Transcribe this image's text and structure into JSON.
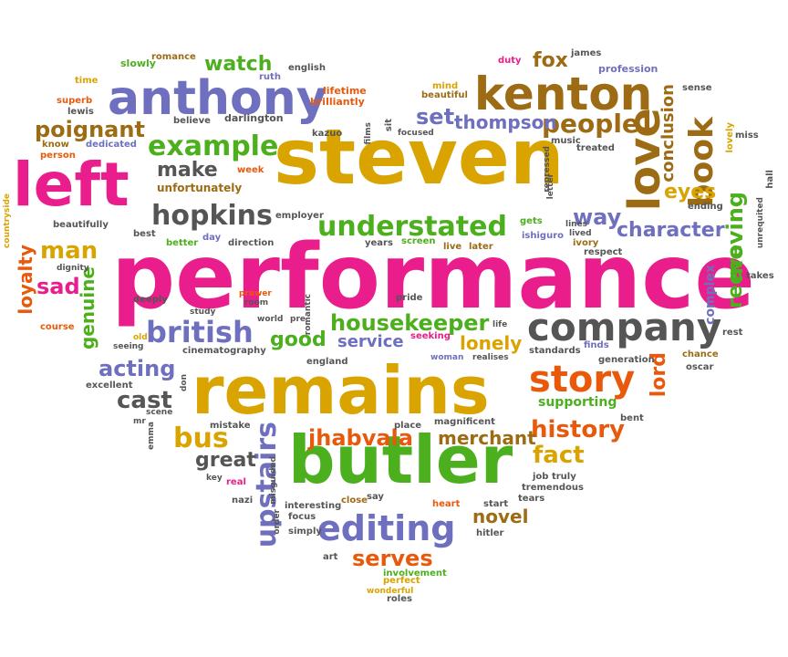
{
  "colors": {
    "pink": "#e91e8c",
    "orange": "#e8590c",
    "gold": "#d9a400",
    "green": "#4caf1d",
    "purple": "#6f6fbf",
    "brown": "#9c6b13",
    "gray": "#555555"
  },
  "words": [
    "performance",
    "steven",
    "remains",
    "butler",
    "left",
    "anthony",
    "kenton",
    "company",
    "love",
    "story",
    "editing",
    "british",
    "housekeeper",
    "upstairs",
    "hopkins",
    "understated",
    "book",
    "example",
    "people",
    "character",
    "moving",
    "history",
    "jhabvala",
    "merchant",
    "watch",
    "poignant",
    "set",
    "thompson",
    "make",
    "unfortunately",
    "man",
    "loyalty",
    "sad",
    "genuine",
    "good",
    "service",
    "lonely",
    "acting",
    "cast",
    "bus",
    "great",
    "fact",
    "serves",
    "novel",
    "eyes",
    "reeve",
    "conclusion",
    "lord",
    "supporting",
    "way",
    "complex",
    "fox",
    "slowly",
    "romance",
    "time",
    "superb",
    "lewis",
    "person",
    "know",
    "dedicated",
    "believe",
    "darlington",
    "beautiful",
    "brilliantly",
    "lifetime",
    "ruth",
    "english",
    "mind",
    "duty",
    "james",
    "profession",
    "sense",
    "lovely",
    "miss",
    "hall",
    "takes",
    "rest",
    "chance",
    "oscar",
    "finds",
    "generation",
    "standards",
    "respect",
    "ivory",
    "later",
    "live",
    "ishiguro",
    "gets",
    "screen",
    "years",
    "direction",
    "day",
    "better",
    "best",
    "beautifully",
    "countryside",
    "dignity",
    "course",
    "deeply",
    "study",
    "prawer",
    "room",
    "pride",
    "world",
    "pre",
    "romantic",
    "seeking",
    "life",
    "woman",
    "realises",
    "england",
    "cinematography",
    "seeing",
    "old",
    "excellent",
    "don",
    "scene",
    "mr",
    "emma",
    "mistake",
    "magnificent",
    "place",
    "bent",
    "key",
    "real",
    "misguided",
    "nazi",
    "interesting",
    "close",
    "say",
    "focus",
    "simply",
    "order",
    "heart",
    "start",
    "tears",
    "tremendous",
    "job truly",
    "hitler",
    "art",
    "wonderful",
    "perfect",
    "involvement",
    "roles",
    "focused",
    "sit",
    "films",
    "kazuo",
    "employer",
    "week",
    "treated",
    "music",
    "repressed",
    "ending",
    "unrequited",
    "letter",
    "lived",
    "lines"
  ]
}
